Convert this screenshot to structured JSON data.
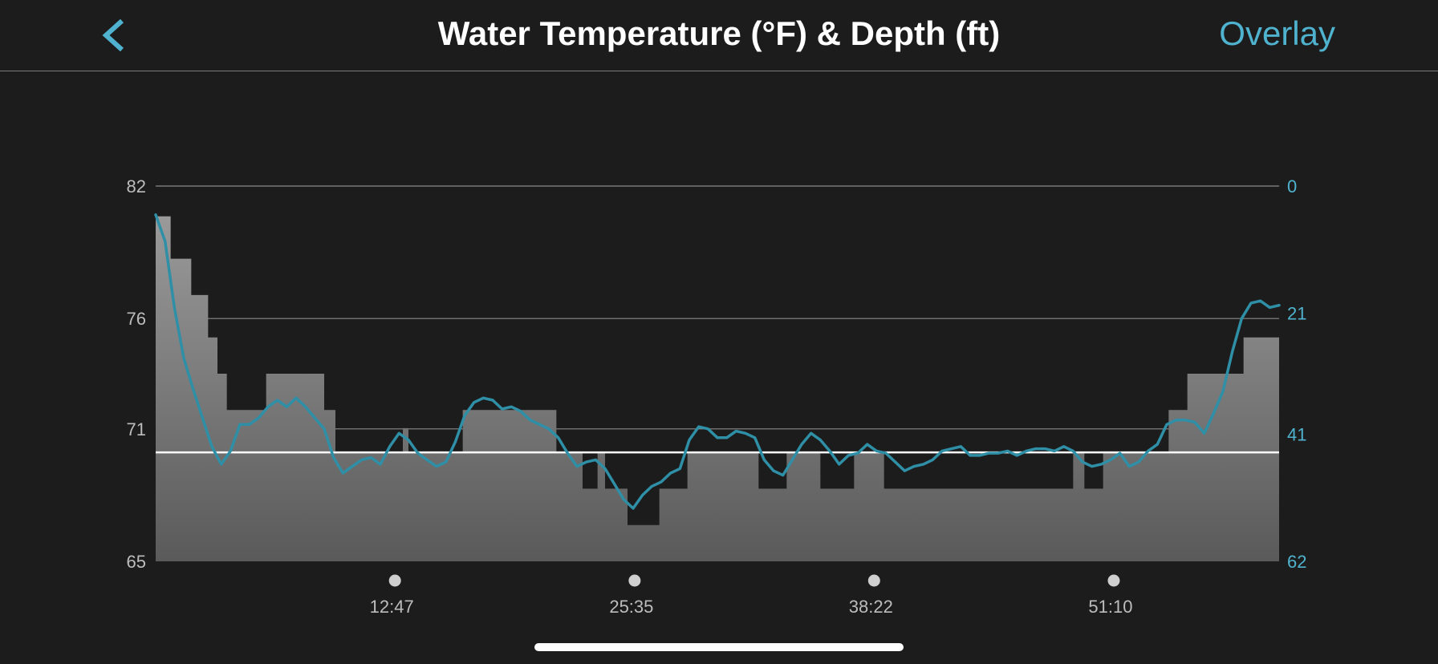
{
  "header": {
    "title": "Water Temperature (°F) & Depth (ft)",
    "overlay_label": "Overlay",
    "back_icon": "chevron-left-icon"
  },
  "colors": {
    "background": "#1c1c1c",
    "accent": "#4fb3cf",
    "temperature_line": "#2e8fa6",
    "depth_fill_top": "#9a9a9a",
    "depth_fill_bottom": "#5a5a5a",
    "reference_line": "#ffffff",
    "grid": "#8a8a8a"
  },
  "chart_data": {
    "type": "line",
    "title": "Water Temperature (°F) & Depth (ft)",
    "x_range": [
      0,
      60
    ],
    "x_unit": "minutes",
    "x_ticks": [
      {
        "value": 12.78,
        "label": "12:47"
      },
      {
        "value": 25.58,
        "label": "25:35"
      },
      {
        "value": 38.37,
        "label": "38:22"
      },
      {
        "value": 51.17,
        "label": "51:10"
      }
    ],
    "y_left": {
      "range": [
        65,
        82
      ],
      "ticks": [
        "82",
        "76",
        "71",
        "65"
      ],
      "tick_values": [
        82,
        76,
        71,
        65
      ]
    },
    "y_right": {
      "range": [
        0,
        62
      ],
      "inverted": true,
      "ticks": [
        "0",
        "21",
        "41",
        "62"
      ],
      "tick_values": [
        0,
        21,
        41,
        62
      ]
    },
    "grid": true,
    "reference_line_depth_ft": 44,
    "series": [
      {
        "name": "",
        "axis": "right",
        "style": "stepped-area",
        "points": [
          [
            0.0,
            5
          ],
          [
            0.8,
            12
          ],
          [
            1.9,
            18
          ],
          [
            2.8,
            25
          ],
          [
            3.3,
            31
          ],
          [
            3.8,
            37
          ],
          [
            5.9,
            31
          ],
          [
            9.0,
            37
          ],
          [
            9.6,
            44
          ],
          [
            13.2,
            40
          ],
          [
            13.5,
            44
          ],
          [
            16.4,
            37
          ],
          [
            21.4,
            44
          ],
          [
            22.8,
            50
          ],
          [
            23.6,
            44
          ],
          [
            24.0,
            50
          ],
          [
            25.2,
            56
          ],
          [
            26.9,
            50
          ],
          [
            28.4,
            44
          ],
          [
            32.2,
            50
          ],
          [
            33.7,
            44
          ],
          [
            35.5,
            50
          ],
          [
            37.3,
            44
          ],
          [
            38.9,
            50
          ],
          [
            49.0,
            44
          ],
          [
            49.6,
            50
          ],
          [
            50.6,
            44
          ],
          [
            54.1,
            37
          ],
          [
            55.1,
            31
          ],
          [
            58.1,
            25
          ],
          [
            60.0,
            25
          ]
        ]
      },
      {
        "name": "",
        "axis": "left",
        "style": "line",
        "points": [
          [
            0.0,
            80.7
          ],
          [
            0.5,
            79.5
          ],
          [
            1.0,
            76.5
          ],
          [
            1.5,
            74.2
          ],
          [
            2.0,
            72.8
          ],
          [
            2.5,
            71.5
          ],
          [
            3.0,
            70.2
          ],
          [
            3.5,
            69.4
          ],
          [
            4.0,
            70.0
          ],
          [
            4.5,
            71.2
          ],
          [
            5.0,
            71.2
          ],
          [
            5.5,
            71.5
          ],
          [
            6.0,
            72.0
          ],
          [
            6.5,
            72.3
          ],
          [
            7.0,
            72.0
          ],
          [
            7.5,
            72.4
          ],
          [
            8.0,
            72.0
          ],
          [
            8.5,
            71.5
          ],
          [
            9.0,
            71.0
          ],
          [
            9.5,
            69.7
          ],
          [
            10.0,
            69.0
          ],
          [
            10.5,
            69.3
          ],
          [
            11.0,
            69.6
          ],
          [
            11.5,
            69.7
          ],
          [
            12.0,
            69.4
          ],
          [
            12.5,
            70.2
          ],
          [
            13.0,
            70.8
          ],
          [
            13.5,
            70.5
          ],
          [
            14.0,
            69.9
          ],
          [
            14.5,
            69.6
          ],
          [
            15.0,
            69.3
          ],
          [
            15.5,
            69.5
          ],
          [
            16.0,
            70.4
          ],
          [
            16.5,
            71.6
          ],
          [
            17.0,
            72.2
          ],
          [
            17.5,
            72.4
          ],
          [
            18.0,
            72.3
          ],
          [
            18.5,
            71.9
          ],
          [
            19.0,
            72.0
          ],
          [
            19.5,
            71.8
          ],
          [
            20.0,
            71.4
          ],
          [
            20.5,
            71.2
          ],
          [
            21.0,
            71.0
          ],
          [
            21.5,
            70.6
          ],
          [
            22.0,
            69.9
          ],
          [
            22.5,
            69.3
          ],
          [
            23.0,
            69.5
          ],
          [
            23.5,
            69.6
          ],
          [
            24.0,
            69.2
          ],
          [
            24.5,
            68.5
          ],
          [
            25.0,
            67.8
          ],
          [
            25.5,
            67.4
          ],
          [
            26.0,
            68.0
          ],
          [
            26.5,
            68.4
          ],
          [
            27.0,
            68.6
          ],
          [
            27.5,
            69.0
          ],
          [
            28.0,
            69.2
          ],
          [
            28.5,
            70.5
          ],
          [
            29.0,
            71.1
          ],
          [
            29.5,
            71.0
          ],
          [
            30.0,
            70.6
          ],
          [
            30.5,
            70.6
          ],
          [
            31.0,
            70.9
          ],
          [
            31.5,
            70.8
          ],
          [
            32.0,
            70.6
          ],
          [
            32.5,
            69.6
          ],
          [
            33.0,
            69.1
          ],
          [
            33.5,
            68.9
          ],
          [
            34.0,
            69.6
          ],
          [
            34.5,
            70.3
          ],
          [
            35.0,
            70.8
          ],
          [
            35.5,
            70.5
          ],
          [
            36.0,
            70.0
          ],
          [
            36.5,
            69.4
          ],
          [
            37.0,
            69.8
          ],
          [
            37.5,
            69.9
          ],
          [
            38.0,
            70.3
          ],
          [
            38.5,
            70.0
          ],
          [
            39.0,
            69.9
          ],
          [
            39.5,
            69.5
          ],
          [
            40.0,
            69.1
          ],
          [
            40.5,
            69.3
          ],
          [
            41.0,
            69.4
          ],
          [
            41.5,
            69.6
          ],
          [
            42.0,
            70.0
          ],
          [
            42.5,
            70.1
          ],
          [
            43.0,
            70.2
          ],
          [
            43.5,
            69.8
          ],
          [
            44.0,
            69.8
          ],
          [
            44.5,
            69.9
          ],
          [
            45.0,
            69.9
          ],
          [
            45.5,
            70.0
          ],
          [
            46.0,
            69.8
          ],
          [
            46.5,
            70.0
          ],
          [
            47.0,
            70.1
          ],
          [
            47.5,
            70.1
          ],
          [
            48.0,
            70.0
          ],
          [
            48.5,
            70.2
          ],
          [
            49.0,
            70.0
          ],
          [
            49.5,
            69.5
          ],
          [
            50.0,
            69.3
          ],
          [
            50.5,
            69.4
          ],
          [
            51.0,
            69.6
          ],
          [
            51.5,
            69.9
          ],
          [
            52.0,
            69.3
          ],
          [
            52.5,
            69.5
          ],
          [
            53.0,
            70.0
          ],
          [
            53.5,
            70.3
          ],
          [
            54.0,
            71.2
          ],
          [
            54.5,
            71.4
          ],
          [
            55.0,
            71.4
          ],
          [
            55.5,
            71.3
          ],
          [
            56.0,
            70.8
          ],
          [
            56.5,
            71.7
          ],
          [
            57.0,
            72.7
          ],
          [
            57.5,
            74.5
          ],
          [
            58.0,
            76.0
          ],
          [
            58.5,
            76.7
          ],
          [
            59.0,
            76.8
          ],
          [
            59.5,
            76.5
          ],
          [
            60.0,
            76.6
          ]
        ]
      }
    ]
  }
}
